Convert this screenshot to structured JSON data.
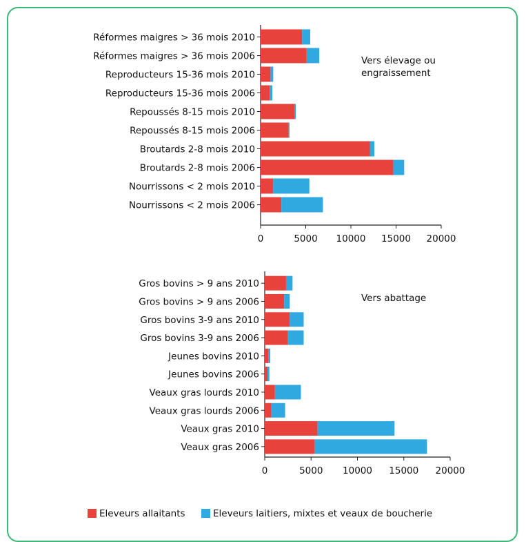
{
  "colors": {
    "allaitants": "#e8423d",
    "laitiers": "#2fa9e0",
    "frame": "#3cb878"
  },
  "legend": {
    "allaitants": "Eleveurs allaitants",
    "laitiers": "Eleveurs laitiers, mixtes et veaux de boucherie"
  },
  "chart_data": [
    {
      "type": "bar",
      "orientation": "horizontal",
      "stacked": true,
      "annotation": "Vers élevage ou\nengraissement",
      "annotation_lines": [
        "Vers élevage ou",
        "engraissement"
      ],
      "categories": [
        "Réformes maigres > 36 mois 2010",
        "Réformes maigres > 36 mois 2006",
        "Reproducteurs 15-36 mois 2010",
        "Reproducteurs 15-36 mois 2006",
        "Repoussés 8-15 mois 2010",
        "Repoussés 8-15 mois 2006",
        "Broutards 2-8 mois 2010",
        "Broutards 2-8 mois 2006",
        "Nourrissons < 2 mois 2010",
        "Nourrissons < 2 mois 2006"
      ],
      "series": [
        {
          "name": "Eleveurs allaitants",
          "values": [
            4600,
            5100,
            1100,
            1000,
            3800,
            3100,
            12100,
            14700,
            1400,
            2300
          ]
        },
        {
          "name": "Eleveurs laitiers, mixtes et veaux de boucherie",
          "values": [
            900,
            1400,
            300,
            300,
            100,
            100,
            500,
            1200,
            4000,
            4600
          ]
        }
      ],
      "xlim": [
        0,
        20000
      ],
      "xticks": [
        "0",
        "5000",
        "10000",
        "15000",
        "20000"
      ]
    },
    {
      "type": "bar",
      "orientation": "horizontal",
      "stacked": true,
      "annotation": "Vers abattage",
      "annotation_lines": [
        "Vers abattage"
      ],
      "categories": [
        "Gros bovins > 9 ans 2010",
        "Gros bovins > 9 ans 2006",
        "Gros bovins 3-9 ans 2010",
        "Gros bovins 3-9 ans 2006",
        "Jeunes bovins 2010",
        "Jeunes bovins 2006",
        "Veaux gras lourds 2010",
        "Veaux gras lourds 2006",
        "Veaux gras 2010",
        "Veaux gras 2006"
      ],
      "series": [
        {
          "name": "Eleveurs allaitants",
          "values": [
            2300,
            2100,
            2700,
            2500,
            400,
            300,
            1100,
            700,
            5700,
            5400
          ]
        },
        {
          "name": "Eleveurs laitiers, mixtes et veaux de boucherie",
          "values": [
            700,
            600,
            1500,
            1700,
            200,
            200,
            2800,
            1500,
            8300,
            12100
          ]
        }
      ],
      "xlim": [
        0,
        20000
      ],
      "xticks": [
        "0",
        "5000",
        "10000",
        "15000",
        "20000"
      ]
    }
  ]
}
